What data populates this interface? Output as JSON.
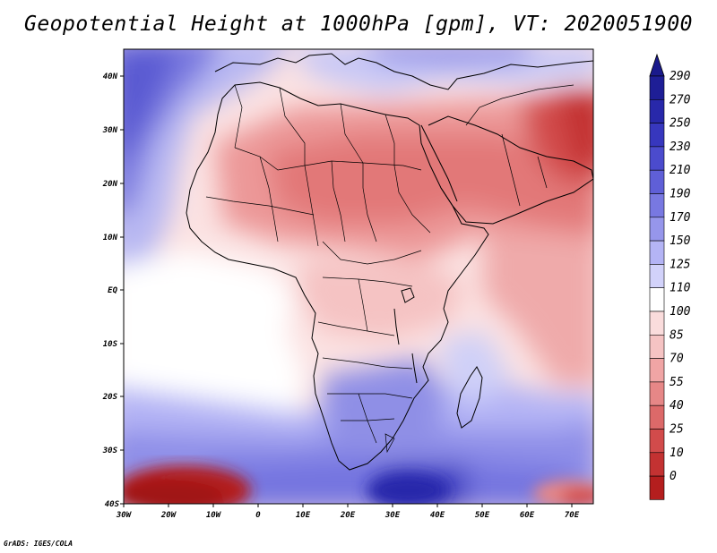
{
  "title": "Geopotential Height at 1000hPa [gpm], VT: 2020051900",
  "credit": "GrADS: IGES/COLA",
  "map": {
    "lat_ticks": [
      "40N",
      "30N",
      "20N",
      "10N",
      "EQ",
      "10S",
      "20S",
      "30S",
      "40S"
    ],
    "lon_ticks": [
      "30W",
      "20W",
      "10W",
      "0",
      "10E",
      "20E",
      "30E",
      "40E",
      "50E",
      "60E",
      "70E"
    ]
  },
  "colorbar": {
    "labels": [
      "290",
      "270",
      "250",
      "230",
      "210",
      "190",
      "170",
      "150",
      "125",
      "110",
      "100",
      "85",
      "70",
      "55",
      "40",
      "25",
      "10",
      "0"
    ],
    "colors": [
      "#1e1e96",
      "#2828aa",
      "#3737be",
      "#4b4bcd",
      "#5f5fd7",
      "#7878e1",
      "#9696eb",
      "#b4b4f5",
      "#d2d2fa",
      "#ffffff",
      "#fadcdc",
      "#f5c3c3",
      "#f0a5a5",
      "#e68787",
      "#dc6969",
      "#d24b4b",
      "#c33232",
      "#b41e1e"
    ],
    "top_arrow_color": "#1a1a8c",
    "bottom_arrow_color": "#a01414"
  }
}
